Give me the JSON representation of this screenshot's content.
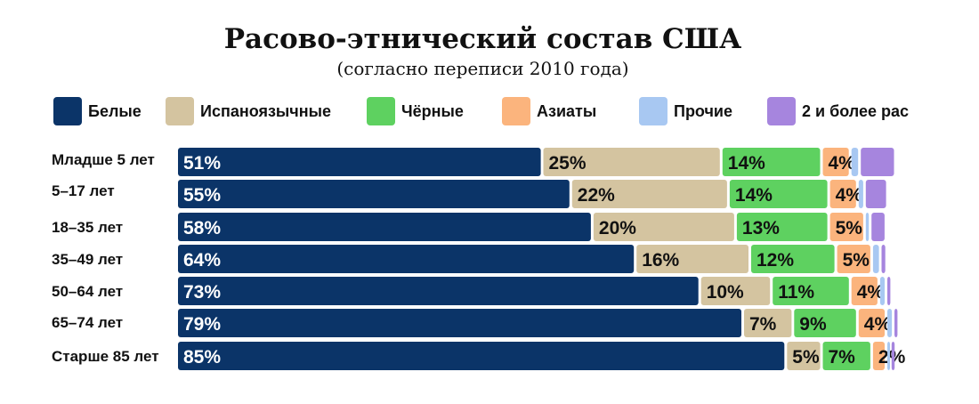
{
  "chart_data": {
    "type": "bar",
    "orientation": "horizontal",
    "stacked": true,
    "title": "Расово-этнический состав США",
    "subtitle": "(согласно переписи 2010 года)",
    "xlim": [
      0,
      100
    ],
    "grid": false,
    "legend_position": "top",
    "categories": [
      "Младше 5 лет",
      "5–17 лет",
      "18–35 лет",
      "35–49 лет",
      "50–64 лет",
      "65–74 лет",
      "Старше 85 лет"
    ],
    "series": [
      {
        "name": "Белые",
        "color": "#0b3468",
        "text_color": "#ffffff",
        "values": [
          51,
          55,
          58,
          64,
          73,
          79,
          85
        ],
        "labels": [
          "51%",
          "55%",
          "58%",
          "64%",
          "73%",
          "79%",
          "85%"
        ]
      },
      {
        "name": "Испаноязычные",
        "color": "#d4c4a0",
        "text_color": "#111111",
        "values": [
          25,
          22,
          20,
          16,
          10,
          7,
          5
        ],
        "labels": [
          "25%",
          "22%",
          "20%",
          "16%",
          "10%",
          "7%",
          "5%"
        ]
      },
      {
        "name": "Чёрные",
        "color": "#5ed160",
        "text_color": "#111111",
        "values": [
          14,
          14,
          13,
          12,
          11,
          9,
          7
        ],
        "labels": [
          "14%",
          "14%",
          "13%",
          "12%",
          "11%",
          "9%",
          "7%"
        ]
      },
      {
        "name": "Азиаты",
        "color": "#fbb47d",
        "text_color": "#111111",
        "values": [
          4,
          4,
          5,
          5,
          4,
          4,
          2
        ],
        "labels": [
          "4%",
          "4%",
          "5%",
          "5%",
          "4%",
          "4%",
          "2%"
        ]
      },
      {
        "name": "Прочие",
        "color": "#a8c8f2",
        "text_color": "#111111",
        "values": [
          1.3,
          1,
          0.8,
          1.2,
          1,
          1,
          0.6
        ],
        "labels": [
          "",
          "",
          "",
          "",
          "",
          "",
          ""
        ]
      },
      {
        "name": "2 и более рас",
        "color": "#a685de",
        "text_color": "#111111",
        "values": [
          5,
          3.2,
          2.2,
          0.9,
          0.8,
          0.8,
          0.8
        ],
        "labels": [
          "",
          "",
          "",
          "",
          "",
          "",
          ""
        ]
      }
    ]
  }
}
